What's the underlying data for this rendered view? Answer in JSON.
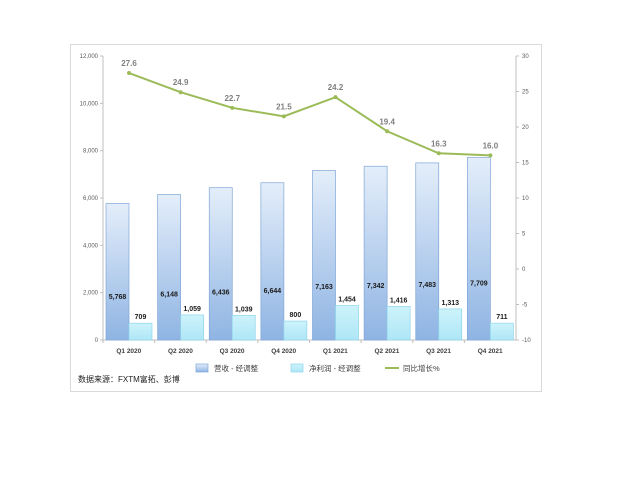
{
  "chart_data": {
    "type": "bar",
    "categories": [
      "Q1 2020",
      "Q2 2020",
      "Q3 2020",
      "Q4 2020",
      "Q1 2021",
      "Q2 2021",
      "Q3 2021",
      "Q4 2021"
    ],
    "series": [
      {
        "name": "营收 - 经调整",
        "type": "bar",
        "axis": "left",
        "color": "#9dc3e6",
        "values": [
          5768,
          6148,
          6436,
          6644,
          7163,
          7342,
          7483,
          7709
        ],
        "labels": [
          "5,768",
          "6,148",
          "6,436",
          "6,644",
          "7,163",
          "7,342",
          "7,483",
          "7,709"
        ]
      },
      {
        "name": "净利润 - 经调整",
        "type": "bar",
        "axis": "left",
        "color": "#bfeffa",
        "values": [
          709,
          1059,
          1039,
          800,
          1454,
          1416,
          1313,
          711
        ],
        "labels": [
          "709",
          "1,059",
          "1,039",
          "800",
          "1,454",
          "1,416",
          "1,313",
          "711"
        ]
      },
      {
        "name": "同比增长%",
        "type": "line",
        "axis": "right",
        "color": "#9bbb59",
        "values": [
          27.6,
          24.9,
          22.7,
          21.5,
          24.2,
          19.4,
          16.3,
          16.0
        ],
        "labels": [
          "27.6",
          "24.9",
          "22.7",
          "21.5",
          "24.2",
          "19.4",
          "16.3",
          "16.0"
        ]
      }
    ],
    "y_left": {
      "min": 0,
      "max": 12000,
      "ticks": [
        "0",
        "2,000",
        "4,000",
        "6,000",
        "8,000",
        "10,000",
        "12,000"
      ]
    },
    "y_right": {
      "min": -10,
      "max": 30,
      "ticks": [
        "-10",
        "-5",
        "0",
        "5",
        "10",
        "15",
        "20",
        "25",
        "30"
      ]
    },
    "grid": false,
    "legend": "bottom"
  },
  "source_note": "数据来源：FXTM富拓、彭博"
}
